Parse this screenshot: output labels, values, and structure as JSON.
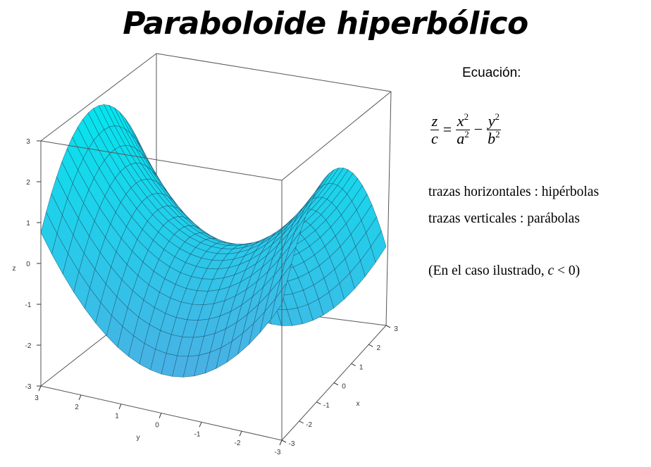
{
  "title": "Paraboloide hiperbólico",
  "equation_label": "Ecuación:",
  "formula": {
    "lhs_num": "z",
    "lhs_den": "c",
    "equals": "=",
    "t1_num": "x",
    "t1_num_exp": "2",
    "t1_den": "a",
    "t1_den_exp": "2",
    "minus": "−",
    "t2_num": "y",
    "t2_num_exp": "2",
    "t2_den": "b",
    "t2_den_exp": "2"
  },
  "traces": {
    "horizontal": "trazas horizontales : hipérbolas",
    "vertical": "trazas verticales : parábolas"
  },
  "note": {
    "prefix": "(En el caso ilustrado,",
    "condition": "c",
    "relation": "< 0)"
  },
  "plot": {
    "surface_color_top": "#00e8ee",
    "surface_color_bottom": "#4aa8e0",
    "z_axis_label": "z",
    "z_ticks": [
      "3",
      "2",
      "1",
      "0",
      "-1",
      "-2",
      "-3"
    ],
    "y_axis_label": "y",
    "y_ticks": [
      "3",
      "2",
      "1",
      "0",
      "-1",
      "-2",
      "-3"
    ],
    "x_axis_label": "x",
    "x_ticks": [
      "3",
      "2",
      "1",
      "0",
      "-1",
      "-2",
      "-3"
    ]
  }
}
